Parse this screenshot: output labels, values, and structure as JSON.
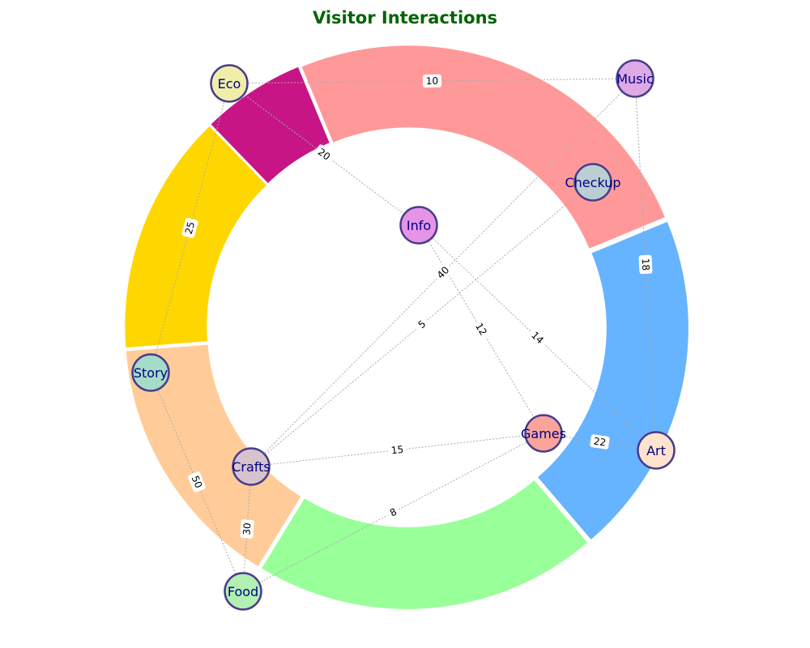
{
  "chart_data": {
    "type": "network",
    "title": "Visitor Interactions",
    "ring_segments": [
      {
        "value": 6,
        "color": "#C71585"
      },
      {
        "value": 14,
        "color": "#FFD700"
      },
      {
        "value": 15,
        "color": "#FFCC99"
      },
      {
        "value": 20,
        "color": "#99FF99"
      },
      {
        "value": 20,
        "color": "#66B3FF"
      },
      {
        "value": 25,
        "color": "#FF9999"
      }
    ],
    "nodes": [
      {
        "name": "Eco",
        "color": "#F1EEAA"
      },
      {
        "name": "Music",
        "color": "#DDA9E6"
      },
      {
        "name": "Checkup",
        "color": "#BBCED2"
      },
      {
        "name": "Info",
        "color": "#E594E6"
      },
      {
        "name": "Story",
        "color": "#A5DCC8"
      },
      {
        "name": "Games",
        "color": "#F8A49A"
      },
      {
        "name": "Art",
        "color": "#FFE3CE"
      },
      {
        "name": "Crafts",
        "color": "#D7C3CC"
      },
      {
        "name": "Food",
        "color": "#B2F0B1"
      }
    ],
    "edges": [
      {
        "source": "Eco",
        "target": "Music",
        "weight": 10
      },
      {
        "source": "Eco",
        "target": "Info",
        "weight": 20
      },
      {
        "source": "Eco",
        "target": "Story",
        "weight": 25
      },
      {
        "source": "Music",
        "target": "Crafts",
        "weight": 40
      },
      {
        "source": "Music",
        "target": "Art",
        "weight": 18
      },
      {
        "source": "Checkup",
        "target": "Crafts",
        "weight": 5
      },
      {
        "source": "Info",
        "target": "Games",
        "weight": 12
      },
      {
        "source": "Info",
        "target": "Art",
        "weight": 14
      },
      {
        "source": "Story",
        "target": "Food",
        "weight": 50
      },
      {
        "source": "Crafts",
        "target": "Games",
        "weight": 15
      },
      {
        "source": "Games",
        "target": "Art",
        "weight": 22
      },
      {
        "source": "Crafts",
        "target": "Food",
        "weight": 30
      },
      {
        "source": "Games",
        "target": "Food",
        "weight": 8
      }
    ]
  }
}
